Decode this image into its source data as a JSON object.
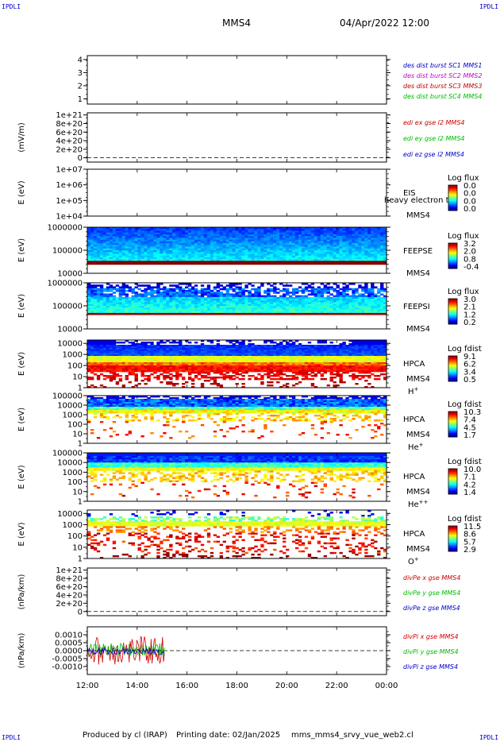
{
  "header": {
    "spacecraft": "MMS4",
    "datetime": "04/Apr/2022 12:00",
    "corner_label": "IPDLI"
  },
  "footer": {
    "produced_by": "Produced by cl (IRAP)",
    "printing_date": "Printing date: 02/Jan/2025",
    "filename": "mms_mms4_srvy_vue_web2.cl"
  },
  "chart_data": {
    "type": "multi-panel time series / spectrogram",
    "x_axis": {
      "start": "12:00",
      "end": "00:00",
      "tick_labels": [
        "12:00",
        "14:00",
        "16:00",
        "18:00",
        "20:00",
        "22:00",
        "00:00"
      ],
      "tick_hours": [
        12,
        14,
        16,
        18,
        20,
        22,
        24
      ]
    },
    "panels": [
      {
        "id": "burst",
        "type": "line",
        "ylabel": "",
        "ytick_labels": [
          "1",
          "2",
          "3",
          "4"
        ],
        "ytick_values": [
          1,
          2,
          3,
          4
        ],
        "ylim": [
          0.6,
          4.3
        ],
        "legend": [
          {
            "text": "des dist burst SC1 MMS1",
            "color": "#0000cc"
          },
          {
            "text": "des dist burst SC2 MMS2",
            "color": "#cc00cc"
          },
          {
            "text": "des dist burst SC3 MMS3",
            "color": "#cc0000"
          },
          {
            "text": "des dist burst SC4 MMS4",
            "color": "#00bb00"
          }
        ]
      },
      {
        "id": "edi",
        "type": "line",
        "ylabel": "(mV/m)",
        "ytick_labels": [
          "1e+21",
          "8e+20",
          "6e+20",
          "4e+20",
          "2e+20",
          "0"
        ],
        "ytick_values": [
          1e+21,
          8e+20,
          6e+20,
          4e+20,
          2e+20,
          0
        ],
        "ylim": [
          -1e+20,
          1.05e+21
        ],
        "zero_line": true,
        "legend": [
          {
            "text": "edi ex gse l2 MMS4",
            "color": "#cc0000"
          },
          {
            "text": "edi ey gse l2 MMS4",
            "color": "#00bb00"
          },
          {
            "text": "edi ez gse l2 MMS4",
            "color": "#0000cc"
          }
        ]
      },
      {
        "id": "eis",
        "type": "heatmap",
        "ylabel": "E (eV)",
        "ytick_labels": [
          "1e+07",
          "1e+06",
          "1e+05",
          "1e+04"
        ],
        "ytick_exponents": [
          7,
          6,
          5,
          4
        ],
        "ylim_log10": [
          4,
          7
        ],
        "instrument": "EIS",
        "subtitle": "heavy electron ts",
        "spacecraft": "MMS4",
        "colorbar": {
          "title": "Log flux",
          "ticks": [
            "0.0",
            "0.0",
            "0.0",
            "0.0"
          ]
        }
      },
      {
        "id": "feepse",
        "type": "heatmap",
        "ylabel": "E (eV)",
        "ytick_labels": [
          "1000000",
          "100000",
          "10000"
        ],
        "ytick_exponents": [
          6,
          5,
          4
        ],
        "ylim_log10": [
          4,
          6
        ],
        "instrument": "FEEPSE",
        "spacecraft": "MMS4",
        "colorbar": {
          "title": "Log flux",
          "ticks": [
            "3.2",
            "2.0",
            "0.8",
            "-0.4"
          ]
        }
      },
      {
        "id": "feepsi",
        "type": "heatmap",
        "ylabel": "E (eV)",
        "ytick_labels": [
          "1000000",
          "100000",
          "10000"
        ],
        "ytick_exponents": [
          6,
          5,
          4
        ],
        "ylim_log10": [
          4,
          6
        ],
        "instrument": "FEEPSI",
        "spacecraft": "MMS4",
        "colorbar": {
          "title": "Log flux",
          "ticks": [
            "3.0",
            "2.1",
            "1.2",
            "0.2"
          ]
        }
      },
      {
        "id": "hpca_h",
        "type": "heatmap",
        "ylabel": "E (eV)",
        "ytick_labels": [
          "10000",
          "1000",
          "100",
          "10",
          "1"
        ],
        "ytick_exponents": [
          4,
          3,
          2,
          1,
          0
        ],
        "ylim_log10": [
          0,
          4.3
        ],
        "instrument": "HPCA",
        "spacecraft": "MMS4",
        "species": "H",
        "species_sup": "+",
        "colorbar": {
          "title": "Log fdist",
          "ticks": [
            "9.1",
            "6.2",
            "3.4",
            "0.5"
          ]
        }
      },
      {
        "id": "hpca_he",
        "type": "heatmap",
        "ylabel": "E (eV)",
        "ytick_labels": [
          "100000",
          "10000",
          "1000",
          "100",
          "10",
          "1"
        ],
        "ytick_exponents": [
          5,
          4,
          3,
          2,
          1,
          0
        ],
        "ylim_log10": [
          0,
          5
        ],
        "instrument": "HPCA",
        "spacecraft": "MMS4",
        "species": "He",
        "species_sup": "+",
        "colorbar": {
          "title": "Log fdist",
          "ticks": [
            "10.3",
            "7.4",
            "4.5",
            "1.7"
          ]
        }
      },
      {
        "id": "hpca_hepp",
        "type": "heatmap",
        "ylabel": "E (eV)",
        "ytick_labels": [
          "100000",
          "10000",
          "1000",
          "100",
          "10",
          "1"
        ],
        "ytick_exponents": [
          5,
          4,
          3,
          2,
          1,
          0
        ],
        "ylim_log10": [
          0,
          5
        ],
        "instrument": "HPCA",
        "spacecraft": "MMS4",
        "species": "He",
        "species_sup": "++",
        "colorbar": {
          "title": "Log fdist",
          "ticks": [
            "10.0",
            "7.1",
            "4.2",
            "1.4"
          ]
        }
      },
      {
        "id": "hpca_o",
        "type": "heatmap",
        "ylabel": "E (eV)",
        "ytick_labels": [
          "10000",
          "1000",
          "100",
          "10",
          "1"
        ],
        "ytick_exponents": [
          4,
          3,
          2,
          1,
          0
        ],
        "ylim_log10": [
          0,
          4.3
        ],
        "instrument": "HPCA",
        "spacecraft": "MMS4",
        "species": "O",
        "species_sup": "+",
        "colorbar": {
          "title": "Log fdist",
          "ticks": [
            "11.5",
            "8.6",
            "5.7",
            "2.9"
          ]
        }
      },
      {
        "id": "divpe",
        "type": "line",
        "ylabel": "(nPa/km)",
        "ytick_labels": [
          "1e+21",
          "8e+20",
          "6e+20",
          "4e+20",
          "2e+20",
          "0"
        ],
        "ytick_values": [
          1e+21,
          8e+20,
          6e+20,
          4e+20,
          2e+20,
          0
        ],
        "ylim": [
          -1e+20,
          1.05e+21
        ],
        "zero_line": true,
        "legend": [
          {
            "text": "divPe x gse MMS4",
            "color": "#cc0000"
          },
          {
            "text": "divPe y gse MMS4",
            "color": "#00bb00"
          },
          {
            "text": "divPe z gse MMS4",
            "color": "#0000cc"
          }
        ]
      },
      {
        "id": "divpi",
        "type": "line",
        "ylabel": "(nPa/km)",
        "ytick_labels": [
          "0.0010",
          "0.0005",
          "0.0000",
          "-0.0005",
          "-0.0010"
        ],
        "ytick_values": [
          0.001,
          0.0005,
          0,
          -0.0005,
          -0.001
        ],
        "ylim": [
          -0.0015,
          0.0015
        ],
        "zero_line": true,
        "data_end_hour": 15.1,
        "legend": [
          {
            "text": "divPi x gse MMS4",
            "color": "#cc0000"
          },
          {
            "text": "divPi y gse MMS4",
            "color": "#00bb00"
          },
          {
            "text": "divPi z gse MMS4",
            "color": "#0000cc"
          }
        ]
      }
    ]
  }
}
